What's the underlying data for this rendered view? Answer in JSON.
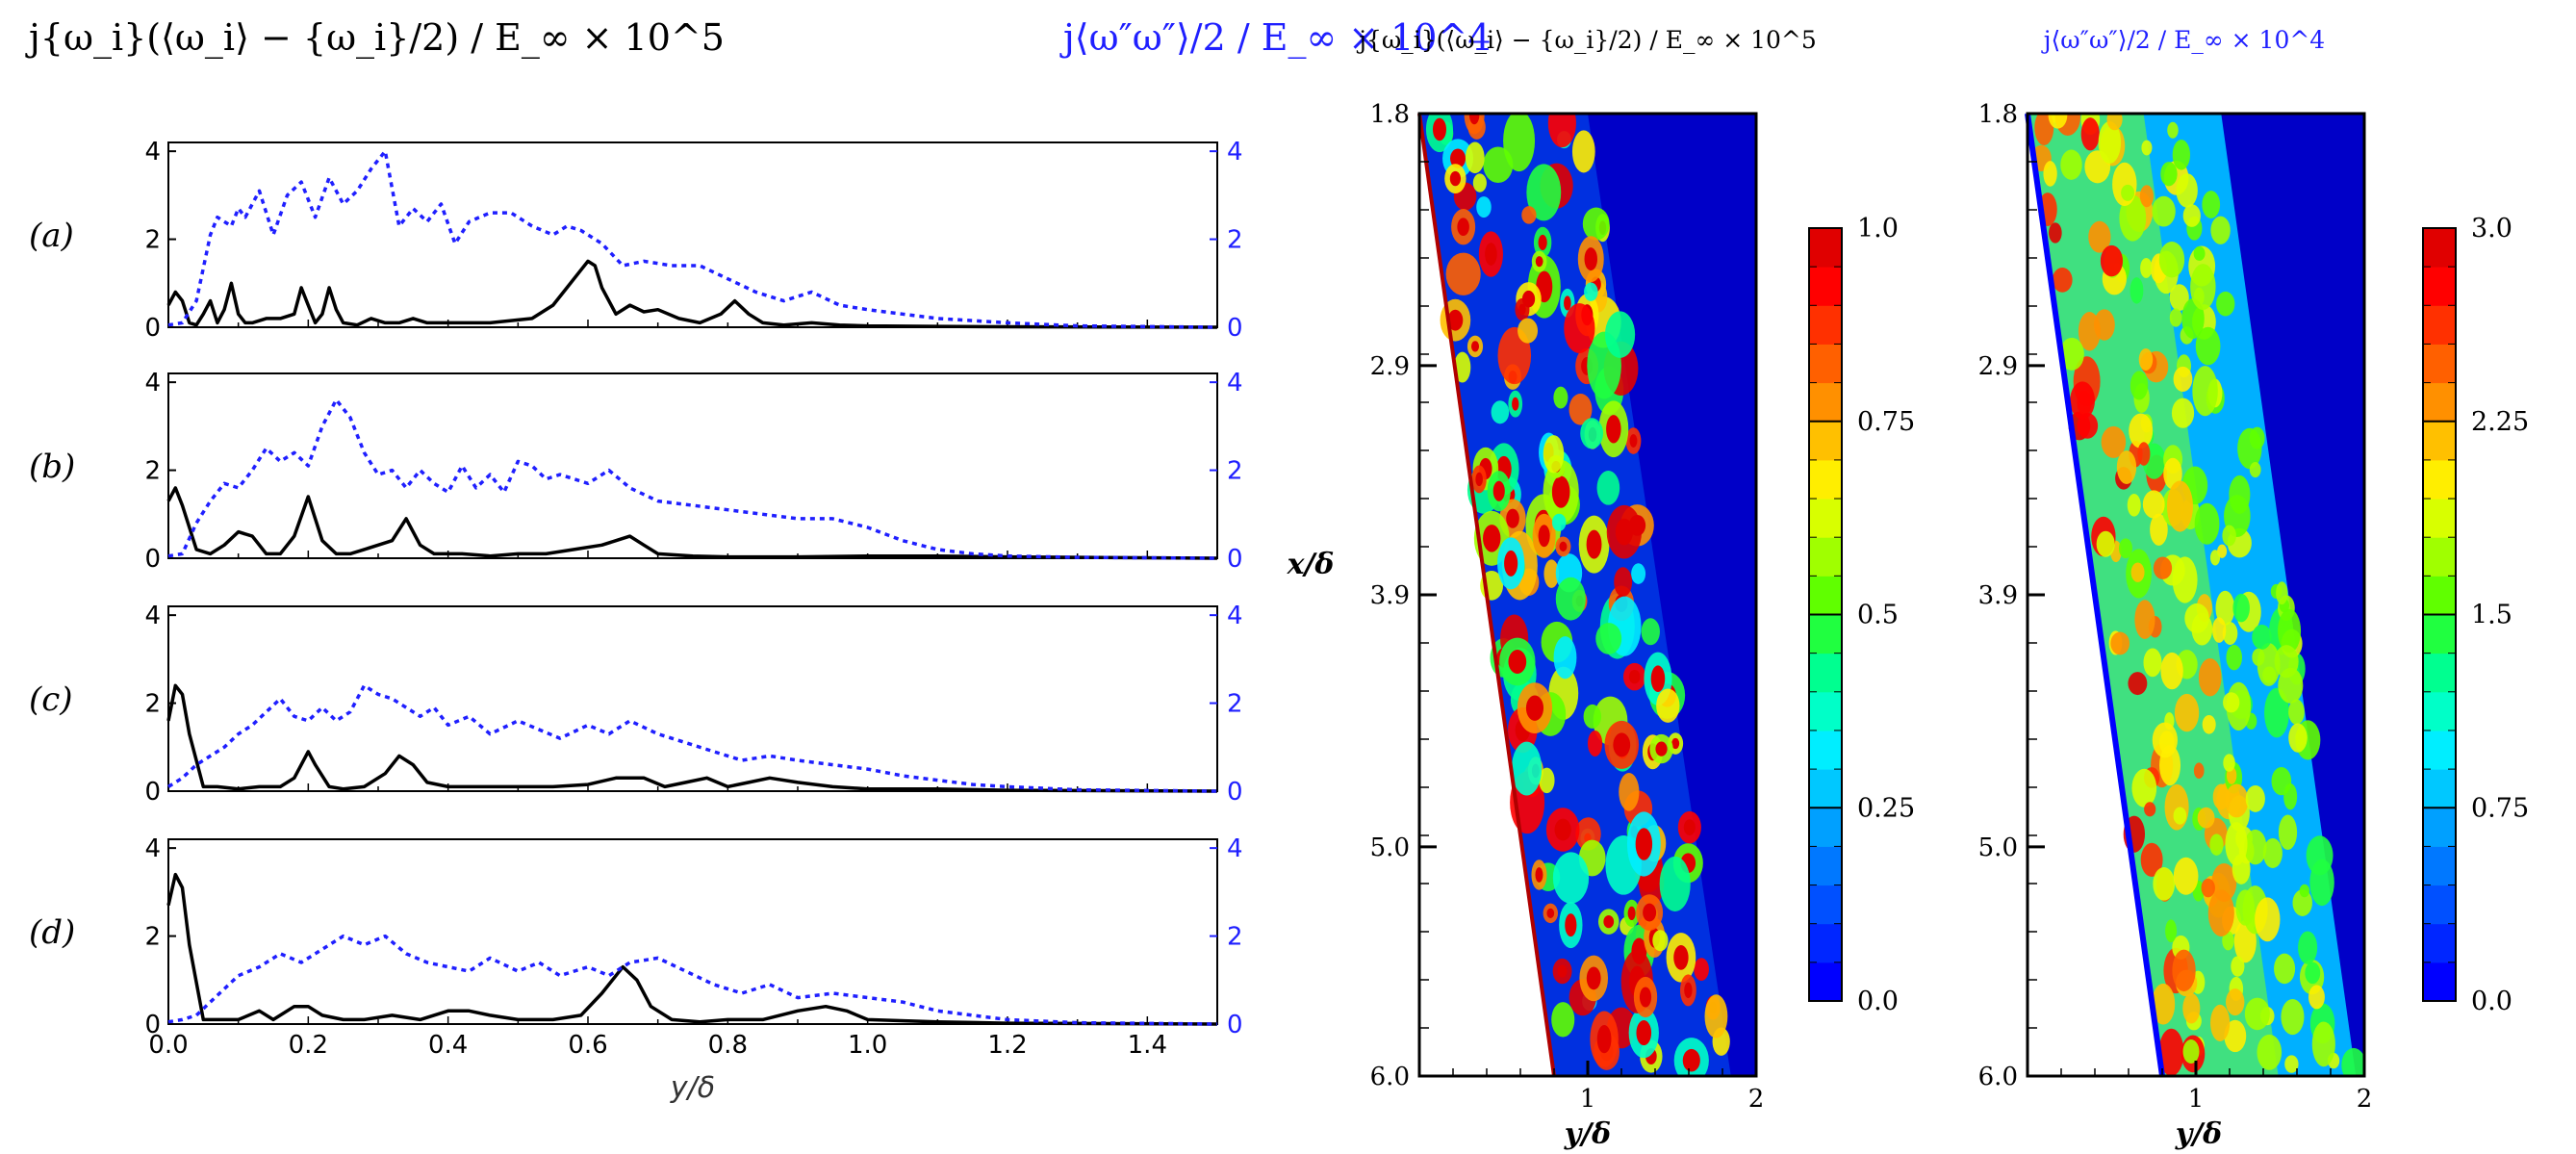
{
  "figure": {
    "line_title_black": "j{ω_i}(⟨ω_i⟩ − {ω_i}/2) / E_∞ × 10^5",
    "line_title_blue": "j⟨ω″ω″⟩/2 / E_∞ × 10^4",
    "contour_title_left": "j{ω_i}(⟨ω_i⟩ − {ω_i}/2) / E_∞ × 10^5",
    "contour_title_right": "j⟨ω″ω″⟩/2 / E_∞ × 10^4",
    "line_xlabel": "y/δ",
    "contour_xlabel": "y/δ",
    "contour_ylabel": "x/δ",
    "colors": {
      "black_series": "#000000",
      "blue_series": "#1f1fff",
      "blue_text": "#1f1fff"
    }
  },
  "chart_data": [
    {
      "type": "line",
      "panel": "(a)",
      "xlim": [
        0,
        1.5
      ],
      "xticks": [
        "0.0",
        "0.2",
        "0.4",
        "0.6",
        "0.8",
        "1.0",
        "1.2",
        "1.4"
      ],
      "ylim": [
        0,
        4.2
      ],
      "yticks_left": [
        "0",
        "2",
        "4"
      ],
      "yticks_right": [
        "0",
        "2",
        "4"
      ],
      "series": [
        {
          "name": "black",
          "style": "solid",
          "x": [
            0,
            0.01,
            0.02,
            0.03,
            0.04,
            0.05,
            0.06,
            0.07,
            0.08,
            0.09,
            0.1,
            0.11,
            0.12,
            0.14,
            0.16,
            0.18,
            0.19,
            0.2,
            0.21,
            0.22,
            0.23,
            0.24,
            0.25,
            0.27,
            0.29,
            0.31,
            0.33,
            0.35,
            0.37,
            0.4,
            0.43,
            0.46,
            0.49,
            0.52,
            0.55,
            0.57,
            0.59,
            0.6,
            0.61,
            0.62,
            0.64,
            0.66,
            0.68,
            0.7,
            0.73,
            0.76,
            0.79,
            0.81,
            0.83,
            0.85,
            0.88,
            0.92,
            0.96,
            1.0,
            1.1,
            1.2,
            1.5
          ],
          "y": [
            0.5,
            0.8,
            0.6,
            0.1,
            0.05,
            0.3,
            0.6,
            0.1,
            0.4,
            1.0,
            0.3,
            0.1,
            0.1,
            0.2,
            0.2,
            0.3,
            0.9,
            0.5,
            0.1,
            0.3,
            0.9,
            0.4,
            0.1,
            0.05,
            0.2,
            0.1,
            0.1,
            0.2,
            0.1,
            0.1,
            0.1,
            0.1,
            0.15,
            0.2,
            0.5,
            0.9,
            1.3,
            1.5,
            1.4,
            0.9,
            0.3,
            0.5,
            0.35,
            0.4,
            0.2,
            0.1,
            0.3,
            0.6,
            0.3,
            0.1,
            0.05,
            0.1,
            0.05,
            0.03,
            0.02,
            0.01,
            0.0
          ]
        },
        {
          "name": "blue",
          "style": "dotted",
          "x": [
            0,
            0.02,
            0.04,
            0.06,
            0.07,
            0.09,
            0.1,
            0.11,
            0.13,
            0.15,
            0.17,
            0.19,
            0.21,
            0.23,
            0.25,
            0.27,
            0.29,
            0.31,
            0.33,
            0.35,
            0.37,
            0.39,
            0.41,
            0.43,
            0.46,
            0.49,
            0.52,
            0.55,
            0.57,
            0.59,
            0.62,
            0.65,
            0.68,
            0.72,
            0.76,
            0.8,
            0.84,
            0.88,
            0.92,
            0.96,
            1.0,
            1.05,
            1.1,
            1.15,
            1.2,
            1.3,
            1.5
          ],
          "y": [
            0.05,
            0.1,
            0.6,
            2.1,
            2.5,
            2.3,
            2.7,
            2.5,
            3.1,
            2.1,
            3.0,
            3.3,
            2.5,
            3.4,
            2.8,
            3.1,
            3.6,
            4.0,
            2.3,
            2.7,
            2.4,
            2.8,
            1.9,
            2.4,
            2.6,
            2.6,
            2.3,
            2.1,
            2.3,
            2.2,
            1.9,
            1.4,
            1.5,
            1.4,
            1.4,
            1.1,
            0.8,
            0.6,
            0.8,
            0.5,
            0.4,
            0.3,
            0.2,
            0.15,
            0.1,
            0.03,
            0.0
          ]
        }
      ]
    },
    {
      "type": "line",
      "panel": "(b)",
      "xlim": [
        0,
        1.5
      ],
      "ylim": [
        0,
        4.2
      ],
      "yticks_left": [
        "0",
        "2",
        "4"
      ],
      "yticks_right": [
        "0",
        "2",
        "4"
      ],
      "series": [
        {
          "name": "black",
          "style": "solid",
          "x": [
            0,
            0.01,
            0.02,
            0.04,
            0.06,
            0.08,
            0.1,
            0.12,
            0.14,
            0.16,
            0.18,
            0.2,
            0.22,
            0.24,
            0.26,
            0.28,
            0.3,
            0.32,
            0.34,
            0.36,
            0.38,
            0.42,
            0.46,
            0.5,
            0.54,
            0.58,
            0.62,
            0.64,
            0.66,
            0.68,
            0.7,
            0.75,
            0.8,
            0.9,
            1.0,
            1.1,
            1.2,
            1.5
          ],
          "y": [
            1.3,
            1.6,
            1.2,
            0.2,
            0.1,
            0.3,
            0.6,
            0.5,
            0.1,
            0.1,
            0.5,
            1.4,
            0.4,
            0.1,
            0.1,
            0.2,
            0.3,
            0.4,
            0.9,
            0.3,
            0.1,
            0.1,
            0.05,
            0.1,
            0.1,
            0.2,
            0.3,
            0.4,
            0.5,
            0.3,
            0.1,
            0.05,
            0.03,
            0.03,
            0.05,
            0.05,
            0.03,
            0.0
          ]
        },
        {
          "name": "blue",
          "style": "dotted",
          "x": [
            0,
            0.02,
            0.04,
            0.06,
            0.08,
            0.1,
            0.12,
            0.14,
            0.16,
            0.18,
            0.2,
            0.22,
            0.24,
            0.26,
            0.28,
            0.3,
            0.32,
            0.34,
            0.36,
            0.38,
            0.4,
            0.42,
            0.44,
            0.46,
            0.48,
            0.5,
            0.52,
            0.54,
            0.56,
            0.58,
            0.6,
            0.63,
            0.66,
            0.7,
            0.75,
            0.8,
            0.85,
            0.9,
            0.95,
            1.0,
            1.05,
            1.1,
            1.15,
            1.2,
            1.3,
            1.5
          ],
          "y": [
            0.05,
            0.1,
            0.8,
            1.3,
            1.7,
            1.6,
            2.0,
            2.5,
            2.2,
            2.4,
            2.1,
            3.0,
            3.6,
            3.2,
            2.4,
            1.9,
            2.0,
            1.6,
            2.0,
            1.7,
            1.5,
            2.1,
            1.6,
            1.9,
            1.5,
            2.2,
            2.1,
            1.8,
            1.9,
            1.8,
            1.7,
            2.0,
            1.6,
            1.3,
            1.2,
            1.1,
            1.0,
            0.9,
            0.9,
            0.7,
            0.4,
            0.2,
            0.1,
            0.05,
            0.02,
            0.0
          ]
        }
      ]
    },
    {
      "type": "line",
      "panel": "(c)",
      "xlim": [
        0,
        1.5
      ],
      "ylim": [
        0,
        4.2
      ],
      "yticks_left": [
        "0",
        "2",
        "4"
      ],
      "yticks_right": [
        "0",
        "2",
        "4"
      ],
      "series": [
        {
          "name": "black",
          "style": "solid",
          "x": [
            0,
            0.01,
            0.02,
            0.03,
            0.05,
            0.07,
            0.1,
            0.13,
            0.16,
            0.18,
            0.2,
            0.21,
            0.23,
            0.25,
            0.28,
            0.31,
            0.33,
            0.35,
            0.37,
            0.4,
            0.45,
            0.5,
            0.55,
            0.6,
            0.64,
            0.68,
            0.71,
            0.74,
            0.77,
            0.8,
            0.83,
            0.86,
            0.9,
            0.95,
            1.0,
            1.1,
            1.2,
            1.5
          ],
          "y": [
            1.6,
            2.4,
            2.2,
            1.3,
            0.1,
            0.1,
            0.05,
            0.1,
            0.1,
            0.3,
            0.9,
            0.6,
            0.1,
            0.05,
            0.1,
            0.4,
            0.8,
            0.6,
            0.2,
            0.1,
            0.1,
            0.1,
            0.1,
            0.15,
            0.3,
            0.3,
            0.1,
            0.2,
            0.3,
            0.1,
            0.2,
            0.3,
            0.2,
            0.1,
            0.05,
            0.05,
            0.02,
            0.0
          ]
        },
        {
          "name": "blue",
          "style": "dotted",
          "x": [
            0,
            0.02,
            0.04,
            0.06,
            0.08,
            0.1,
            0.12,
            0.14,
            0.16,
            0.18,
            0.2,
            0.22,
            0.24,
            0.26,
            0.28,
            0.3,
            0.32,
            0.34,
            0.36,
            0.38,
            0.4,
            0.43,
            0.46,
            0.5,
            0.53,
            0.56,
            0.6,
            0.63,
            0.66,
            0.7,
            0.74,
            0.78,
            0.82,
            0.86,
            0.9,
            0.95,
            1.0,
            1.05,
            1.1,
            1.15,
            1.2,
            1.3,
            1.5
          ],
          "y": [
            0.1,
            0.3,
            0.6,
            0.8,
            1.0,
            1.3,
            1.5,
            1.8,
            2.1,
            1.7,
            1.6,
            1.9,
            1.6,
            1.8,
            2.4,
            2.2,
            2.1,
            1.9,
            1.7,
            1.9,
            1.5,
            1.7,
            1.3,
            1.6,
            1.4,
            1.2,
            1.5,
            1.3,
            1.6,
            1.3,
            1.1,
            0.9,
            0.7,
            0.8,
            0.7,
            0.6,
            0.5,
            0.35,
            0.25,
            0.15,
            0.1,
            0.03,
            0.0
          ]
        }
      ]
    },
    {
      "type": "line",
      "panel": "(d)",
      "xlim": [
        0,
        1.5
      ],
      "ylim": [
        0,
        4.2
      ],
      "yticks_left": [
        "0",
        "2",
        "4"
      ],
      "yticks_right": [
        "0",
        "2",
        "4"
      ],
      "series": [
        {
          "name": "black",
          "style": "solid",
          "x": [
            0,
            0.01,
            0.02,
            0.03,
            0.05,
            0.07,
            0.1,
            0.13,
            0.15,
            0.18,
            0.2,
            0.22,
            0.25,
            0.28,
            0.32,
            0.36,
            0.4,
            0.43,
            0.46,
            0.5,
            0.55,
            0.59,
            0.62,
            0.64,
            0.65,
            0.67,
            0.69,
            0.72,
            0.76,
            0.8,
            0.85,
            0.9,
            0.94,
            0.97,
            1.0,
            1.1,
            1.2,
            1.5
          ],
          "y": [
            2.7,
            3.4,
            3.1,
            1.8,
            0.1,
            0.1,
            0.1,
            0.3,
            0.1,
            0.4,
            0.4,
            0.2,
            0.1,
            0.1,
            0.2,
            0.1,
            0.3,
            0.3,
            0.2,
            0.1,
            0.1,
            0.2,
            0.7,
            1.1,
            1.3,
            1.0,
            0.4,
            0.1,
            0.05,
            0.1,
            0.1,
            0.3,
            0.4,
            0.3,
            0.1,
            0.05,
            0.02,
            0.0
          ]
        },
        {
          "name": "blue",
          "style": "dotted",
          "x": [
            0,
            0.02,
            0.04,
            0.06,
            0.08,
            0.1,
            0.13,
            0.16,
            0.19,
            0.22,
            0.25,
            0.28,
            0.31,
            0.34,
            0.37,
            0.4,
            0.43,
            0.46,
            0.5,
            0.53,
            0.56,
            0.6,
            0.63,
            0.66,
            0.7,
            0.74,
            0.78,
            0.82,
            0.86,
            0.9,
            0.95,
            1.0,
            1.05,
            1.1,
            1.15,
            1.2,
            1.3,
            1.5
          ],
          "y": [
            0.05,
            0.1,
            0.2,
            0.5,
            0.8,
            1.1,
            1.3,
            1.6,
            1.4,
            1.7,
            2.0,
            1.8,
            2.0,
            1.6,
            1.4,
            1.3,
            1.2,
            1.5,
            1.2,
            1.4,
            1.1,
            1.3,
            1.1,
            1.4,
            1.5,
            1.2,
            0.9,
            0.7,
            0.9,
            0.6,
            0.7,
            0.6,
            0.5,
            0.3,
            0.2,
            0.1,
            0.03,
            0.0
          ]
        }
      ]
    },
    {
      "type": "heatmap",
      "name": "contour-left",
      "xlim": [
        0,
        2
      ],
      "ylim": [
        6.0,
        1.8
      ],
      "xticks": [
        "1",
        "2"
      ],
      "yticks": [
        "1.8",
        "2.9",
        "3.9",
        "5.0",
        "6.0"
      ],
      "wall_y_at_top": 0.0,
      "wall_y_at_bottom": 0.8,
      "edge_y_at_top": 1.0,
      "edge_y_at_bottom": 1.85,
      "colorbar": {
        "range": [
          0.0,
          1.0
        ],
        "ticks": [
          "1.0",
          "0.75",
          "0.5",
          "0.25",
          "0.0"
        ],
        "levels": 20
      }
    },
    {
      "type": "heatmap",
      "name": "contour-right",
      "xlim": [
        0,
        2
      ],
      "ylim": [
        6.0,
        1.8
      ],
      "xticks": [
        "1",
        "2"
      ],
      "yticks": [
        "1.8",
        "2.9",
        "3.9",
        "5.0",
        "6.0"
      ],
      "wall_y_at_top": 0.0,
      "wall_y_at_bottom": 0.8,
      "edge_y_at_top": 1.15,
      "edge_y_at_bottom": 1.95,
      "colorbar": {
        "range": [
          0.0,
          3.0
        ],
        "ticks": [
          "3.0",
          "2.25",
          "1.5",
          "0.75",
          "0.0"
        ],
        "levels": 20
      }
    }
  ]
}
